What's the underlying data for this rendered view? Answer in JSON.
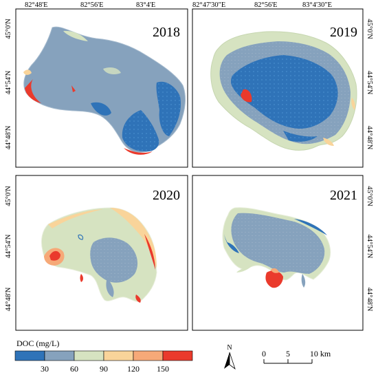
{
  "colors": {
    "deep_blue": "#2f73b8",
    "grey_blue": "#86a2bd",
    "pale_green": "#d6e3c1",
    "light_orange": "#f9d49a",
    "salmon": "#f6a978",
    "red": "#ea3a2c"
  },
  "panels": [
    {
      "year": "2018",
      "top_ticks": [
        "82°48'E",
        "82°56'E",
        "83°4'E"
      ],
      "left_ticks": [
        "45°0'N",
        "44°54'N",
        "44°48'N"
      ]
    },
    {
      "year": "2019",
      "top_ticks": [
        "82°47'30\"E",
        "82°56'E",
        "83°4'30\"E"
      ],
      "right_ticks": [
        "45°0'N",
        "44°54'N",
        "44°48'N"
      ]
    },
    {
      "year": "2020",
      "left_ticks": [
        "45°0'N",
        "44°54'N",
        "44°48'N"
      ]
    },
    {
      "year": "2021",
      "right_ticks": [
        "45°0'N",
        "44°54'N",
        "44°48'N"
      ]
    }
  ],
  "legend": {
    "title": "DOC (mg/L)",
    "labels": [
      "30",
      "60",
      "90",
      "120",
      "150"
    ]
  },
  "north_arrow": {
    "label": "N"
  },
  "scale_bar": {
    "labels": [
      "0",
      "5",
      "10 km"
    ]
  }
}
